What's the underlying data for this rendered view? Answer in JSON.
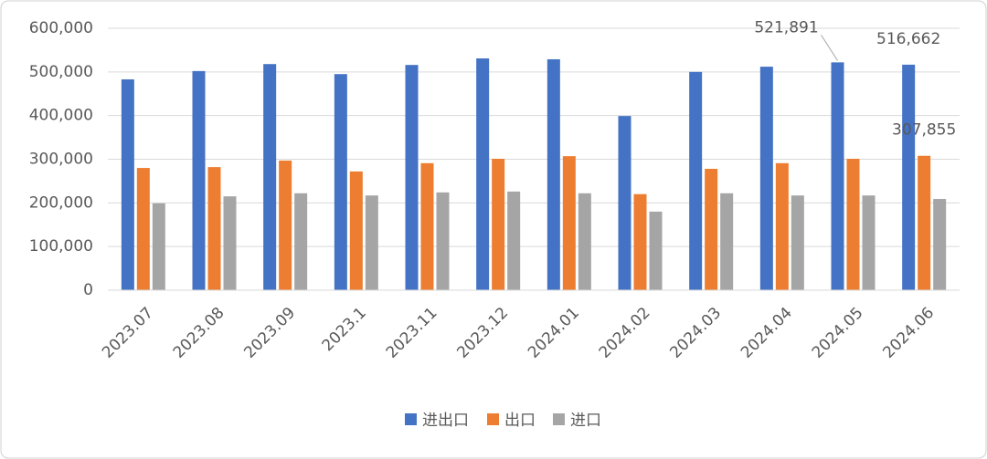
{
  "chart_data": {
    "type": "bar",
    "categories": [
      "2023.07",
      "2023.08",
      "2023.09",
      "2023.1",
      "2023.11",
      "2023.12",
      "2024.01",
      "2024.02",
      "2024.03",
      "2024.04",
      "2024.05",
      "2024.06"
    ],
    "series": [
      {
        "name": "进出口",
        "color": "#4472c4",
        "values": [
          483000,
          502000,
          518000,
          495000,
          516000,
          531000,
          529000,
          399000,
          500000,
          512000,
          521891,
          516662
        ],
        "value_labels": [
          null,
          null,
          null,
          null,
          null,
          null,
          null,
          null,
          null,
          null,
          "521,891",
          "516,662"
        ]
      },
      {
        "name": "出口",
        "color": "#ed7d31",
        "values": [
          280000,
          282000,
          297000,
          272000,
          291000,
          301000,
          307000,
          220000,
          278000,
          291000,
          301000,
          307855
        ],
        "value_labels": [
          null,
          null,
          null,
          null,
          null,
          null,
          null,
          null,
          null,
          null,
          null,
          "307,855"
        ]
      },
      {
        "name": "进口",
        "color": "#a5a5a5",
        "values": [
          199000,
          215000,
          222000,
          217000,
          224000,
          226000,
          222000,
          180000,
          222000,
          217000,
          217000,
          209000
        ]
      }
    ],
    "ylim": [
      0,
      600000
    ],
    "yticks": [
      0,
      {
        "value": 100000,
        "label": "100,000"
      },
      {
        "value": 200000,
        "label": "200,000"
      },
      {
        "value": 300000,
        "label": "300,000"
      },
      {
        "value": 400000,
        "label": "400,000"
      },
      {
        "value": 500000,
        "label": "500,000"
      },
      {
        "value": 600000,
        "label": "600,000"
      }
    ],
    "grid": true,
    "legend": "bottom"
  }
}
